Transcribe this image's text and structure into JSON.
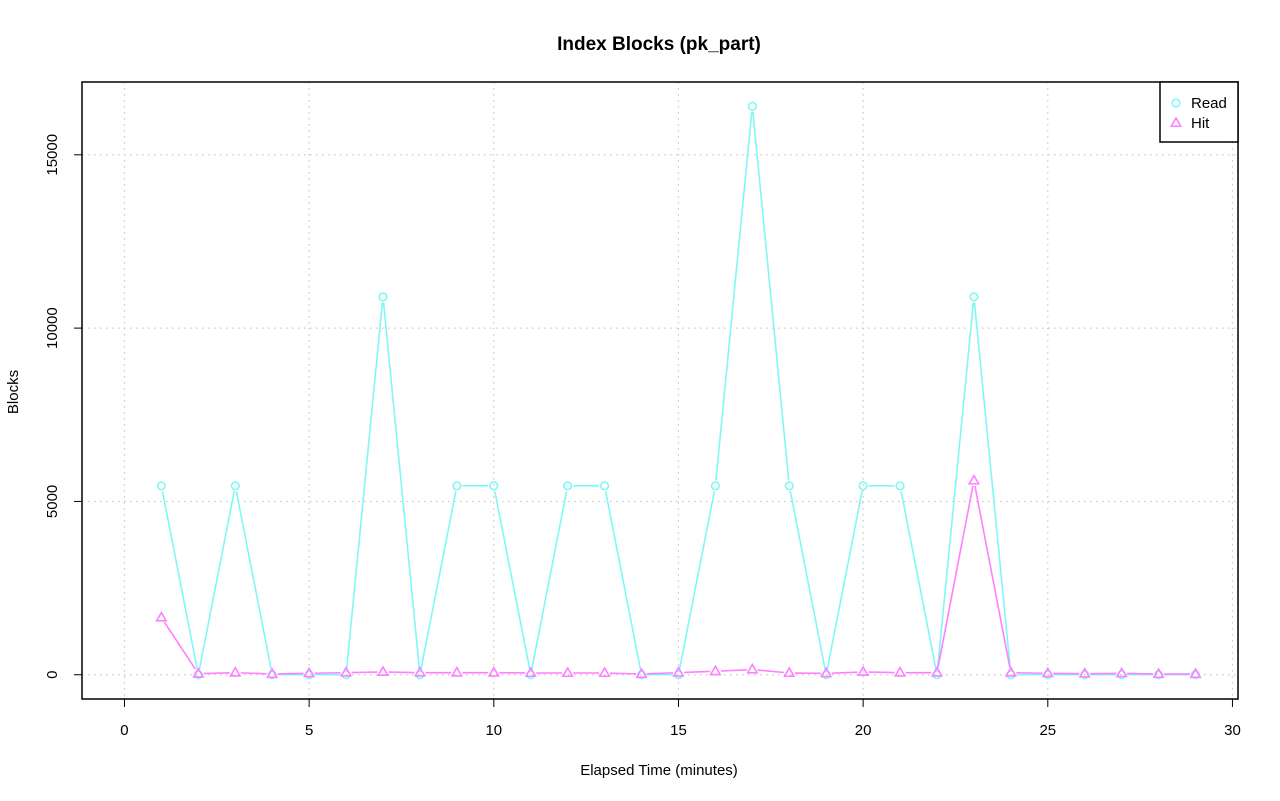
{
  "chart_data": {
    "type": "line",
    "title": "Index Blocks (pk_part)",
    "xlabel": "Elapsed Time (minutes)",
    "ylabel": "Blocks",
    "xlim": [
      -1.15,
      30.15
    ],
    "ylim": [
      -700,
      17100
    ],
    "xticks": [
      0,
      5,
      10,
      15,
      20,
      25,
      30
    ],
    "yticks": [
      0,
      5000,
      10000,
      15000
    ],
    "grid": true,
    "legend_position": "top-right",
    "x": [
      1,
      2,
      3,
      4,
      5,
      6,
      7,
      8,
      9,
      10,
      11,
      12,
      13,
      14,
      15,
      16,
      17,
      18,
      19,
      20,
      21,
      22,
      23,
      24,
      25,
      26,
      27,
      28,
      29
    ],
    "series": [
      {
        "name": "Read",
        "color": "#7ff7f7",
        "marker": "circle",
        "values": [
          5450,
          0,
          5450,
          0,
          0,
          0,
          10900,
          0,
          5450,
          5450,
          0,
          5450,
          5450,
          0,
          0,
          5450,
          16400,
          5450,
          0,
          5450,
          5450,
          0,
          10900,
          0,
          0,
          0,
          0,
          0,
          0
        ]
      },
      {
        "name": "Hit",
        "color": "#ff7fff",
        "marker": "triangle",
        "values": [
          1650,
          30,
          60,
          20,
          40,
          60,
          80,
          60,
          60,
          60,
          50,
          50,
          50,
          20,
          60,
          100,
          150,
          50,
          40,
          80,
          60,
          60,
          5600,
          60,
          40,
          30,
          40,
          20,
          20
        ]
      }
    ]
  }
}
